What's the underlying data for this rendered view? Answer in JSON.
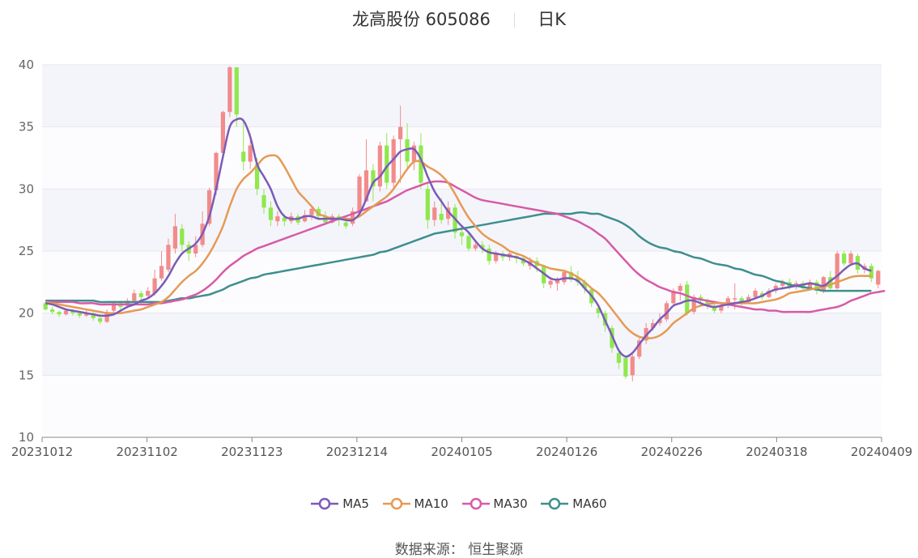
{
  "title": "龙高股份 605086",
  "period": "日K",
  "source_label": "数据来源：",
  "source_value": "恒生聚源",
  "colors": {
    "up": "#f28b8c",
    "down": "#8fe84e",
    "band": "#f4f5fb",
    "grid": "#e6e6ee",
    "axis": "#888888",
    "MA5": "#7b5bb7",
    "MA10": "#e69a55",
    "MA30": "#d85aa6",
    "MA60": "#3e8f8f"
  },
  "chart_data": {
    "type": "candlestick",
    "x_ticks": [
      "20231012",
      "20231102",
      "20231123",
      "20231214",
      "20240105",
      "20240126",
      "20240226",
      "20240318",
      "20240409"
    ],
    "ylim": [
      10,
      40
    ],
    "y_ticks": [
      10,
      15,
      20,
      25,
      30,
      35,
      40
    ],
    "grid": true,
    "legend_position": "bottom",
    "legend": [
      "MA5",
      "MA10",
      "MA30",
      "MA60"
    ],
    "candles": [
      [
        20.8,
        20.3,
        20.9,
        20.2
      ],
      [
        20.3,
        20.1,
        20.5,
        19.9
      ],
      [
        20.1,
        19.9,
        20.2,
        19.7
      ],
      [
        19.9,
        20.2,
        20.4,
        19.8
      ],
      [
        20.2,
        20.0,
        20.3,
        19.8
      ],
      [
        20.0,
        19.8,
        20.1,
        19.6
      ],
      [
        19.8,
        20.0,
        20.2,
        19.7
      ],
      [
        20.0,
        19.6,
        20.1,
        19.4
      ],
      [
        19.6,
        19.3,
        19.8,
        19.1
      ],
      [
        19.3,
        20.1,
        20.3,
        19.2
      ],
      [
        20.2,
        20.8,
        21.0,
        20.0
      ],
      [
        20.8,
        20.5,
        21.0,
        20.3
      ],
      [
        20.6,
        21.0,
        21.2,
        20.4
      ],
      [
        21.0,
        21.6,
        21.9,
        20.9
      ],
      [
        21.6,
        21.3,
        21.8,
        21.0
      ],
      [
        21.4,
        21.8,
        22.1,
        21.2
      ],
      [
        21.6,
        22.8,
        23.5,
        21.4
      ],
      [
        22.8,
        23.8,
        25.0,
        22.6
      ],
      [
        23.5,
        25.5,
        26.0,
        23.3
      ],
      [
        25.2,
        27.0,
        28.0,
        24.8
      ],
      [
        26.8,
        25.5,
        27.2,
        25.0
      ],
      [
        25.5,
        24.8,
        25.8,
        24.2
      ],
      [
        24.8,
        25.5,
        26.2,
        24.5
      ],
      [
        25.5,
        27.2,
        28.2,
        25.3
      ],
      [
        27.2,
        29.9,
        30.1,
        27.0
      ],
      [
        29.9,
        32.9,
        33.0,
        29.5
      ],
      [
        32.9,
        36.2,
        36.3,
        32.5
      ],
      [
        36.2,
        39.8,
        39.9,
        35.8
      ],
      [
        39.8,
        36.0,
        37.8,
        35.0
      ],
      [
        33.0,
        32.2,
        35.5,
        31.5
      ],
      [
        32.2,
        33.5,
        34.5,
        31.6
      ],
      [
        32.0,
        30.0,
        32.5,
        29.5
      ],
      [
        29.5,
        28.5,
        30.0,
        28.0
      ],
      [
        28.5,
        27.5,
        29.0,
        27.0
      ],
      [
        27.4,
        27.8,
        28.2,
        27.0
      ],
      [
        27.7,
        27.4,
        28.0,
        27.0
      ],
      [
        27.4,
        27.8,
        28.1,
        27.2
      ],
      [
        27.8,
        27.3,
        28.0,
        27.1
      ],
      [
        27.4,
        27.9,
        28.3,
        27.3
      ],
      [
        27.9,
        28.4,
        28.7,
        27.5
      ],
      [
        28.4,
        27.8,
        28.6,
        27.5
      ],
      [
        27.8,
        27.3,
        28.2,
        27.1
      ],
      [
        27.3,
        27.8,
        28.0,
        27.2
      ],
      [
        27.8,
        27.5,
        28.0,
        27.0
      ],
      [
        27.3,
        27.0,
        27.8,
        26.8
      ],
      [
        27.2,
        28.2,
        28.5,
        27.0
      ],
      [
        28.2,
        31.0,
        31.2,
        28.0
      ],
      [
        29.0,
        31.5,
        34.0,
        29.0
      ],
      [
        31.5,
        30.2,
        32.0,
        29.0
      ],
      [
        30.2,
        33.5,
        33.8,
        29.8
      ],
      [
        33.5,
        30.5,
        34.5,
        30.0
      ],
      [
        30.5,
        34.0,
        34.3,
        30.0
      ],
      [
        34.0,
        35.0,
        36.7,
        30.5
      ],
      [
        34.0,
        32.2,
        35.3,
        31.5
      ],
      [
        32.2,
        33.5,
        33.8,
        31.5
      ],
      [
        33.5,
        30.5,
        34.5,
        30.0
      ],
      [
        30.0,
        27.5,
        30.5,
        26.8
      ],
      [
        27.5,
        28.5,
        29.0,
        27.0
      ],
      [
        28.0,
        27.5,
        29.3,
        27.2
      ],
      [
        27.6,
        28.5,
        29.0,
        27.1
      ],
      [
        28.5,
        26.5,
        28.8,
        26.0
      ],
      [
        26.5,
        26.2,
        26.8,
        25.5
      ],
      [
        26.2,
        25.2,
        26.5,
        25.0
      ],
      [
        25.2,
        25.5,
        25.8,
        25.0
      ],
      [
        25.5,
        25.2,
        25.8,
        24.8
      ],
      [
        25.2,
        24.2,
        25.5,
        23.9
      ],
      [
        24.2,
        24.8,
        25.0,
        24.0
      ],
      [
        24.8,
        24.5,
        25.0,
        24.2
      ],
      [
        24.5,
        24.8,
        25.0,
        24.2
      ],
      [
        24.6,
        24.4,
        24.9,
        24.0
      ],
      [
        24.4,
        24.0,
        24.6,
        23.8
      ],
      [
        23.8,
        24.2,
        24.5,
        23.5
      ],
      [
        24.2,
        23.8,
        24.5,
        23.3
      ],
      [
        23.8,
        22.4,
        23.9,
        22.0
      ],
      [
        22.3,
        22.6,
        22.9,
        22.0
      ],
      [
        22.4,
        22.7,
        22.9,
        21.8
      ],
      [
        22.5,
        23.3,
        23.5,
        22.3
      ],
      [
        23.3,
        22.7,
        23.8,
        22.5
      ],
      [
        22.9,
        22.5,
        23.4,
        22.2
      ],
      [
        22.5,
        22.0,
        22.7,
        21.6
      ],
      [
        21.9,
        20.8,
        22.0,
        20.5
      ],
      [
        20.4,
        20.0,
        20.6,
        19.6
      ],
      [
        20.0,
        19.0,
        20.2,
        18.5
      ],
      [
        18.8,
        17.2,
        19.0,
        16.8
      ],
      [
        16.8,
        16.0,
        17.0,
        15.5
      ],
      [
        16.4,
        14.9,
        16.6,
        14.7
      ],
      [
        15.0,
        16.5,
        16.8,
        14.5
      ],
      [
        16.5,
        17.8,
        18.0,
        16.3
      ],
      [
        17.8,
        18.8,
        19.2,
        17.5
      ],
      [
        18.8,
        19.2,
        19.5,
        18.6
      ],
      [
        19.2,
        19.5,
        20.0,
        19.0
      ],
      [
        19.5,
        20.8,
        21.0,
        19.3
      ],
      [
        20.8,
        21.8,
        22.0,
        20.5
      ],
      [
        21.8,
        22.2,
        22.4,
        21.0
      ],
      [
        22.3,
        20.0,
        22.6,
        19.8
      ],
      [
        20.1,
        21.3,
        21.5,
        19.9
      ],
      [
        21.3,
        21.0,
        21.5,
        20.6
      ],
      [
        21.0,
        20.6,
        21.2,
        20.3
      ],
      [
        20.6,
        20.2,
        20.8,
        20.0
      ],
      [
        20.2,
        20.6,
        20.8,
        20.0
      ],
      [
        20.6,
        21.2,
        21.4,
        20.4
      ],
      [
        21.2,
        21.2,
        22.4,
        20.3
      ],
      [
        21.2,
        20.9,
        21.4,
        20.6
      ],
      [
        20.9,
        21.3,
        21.5,
        20.8
      ],
      [
        21.3,
        21.8,
        22.0,
        21.1
      ],
      [
        21.6,
        21.3,
        21.8,
        21.1
      ],
      [
        21.3,
        21.8,
        22.0,
        21.2
      ],
      [
        21.8,
        22.2,
        22.4,
        21.6
      ],
      [
        22.2,
        22.5,
        22.7,
        22.0
      ],
      [
        22.5,
        22.1,
        22.8,
        21.9
      ],
      [
        22.1,
        22.4,
        22.6,
        21.9
      ],
      [
        22.4,
        22.0,
        22.6,
        21.8
      ],
      [
        22.0,
        22.5,
        22.7,
        21.8
      ],
      [
        22.5,
        21.8,
        22.7,
        21.5
      ],
      [
        21.8,
        22.9,
        23.0,
        21.6
      ],
      [
        22.9,
        22.0,
        23.4,
        21.8
      ],
      [
        22.0,
        24.8,
        25.0,
        21.9
      ],
      [
        24.8,
        24.0,
        25.0,
        23.8
      ],
      [
        24.0,
        24.8,
        25.0,
        23.9
      ],
      [
        24.6,
        23.5,
        24.8,
        23.2
      ],
      [
        23.5,
        23.8,
        24.0,
        23.2
      ],
      [
        23.8,
        22.8,
        24.0,
        22.5
      ],
      [
        22.3,
        23.4,
        23.5,
        22.0
      ]
    ],
    "series": [
      {
        "name": "MA5",
        "values": [
          20.8,
          20.7,
          20.5,
          20.3,
          20.2,
          20.1,
          20.0,
          19.9,
          19.8,
          19.8,
          19.9,
          20.2,
          20.5,
          20.7,
          21.0,
          21.2,
          21.6,
          22.2,
          23.0,
          24.0,
          24.8,
          25.2,
          25.6,
          26.4,
          27.8,
          30.0,
          32.6,
          35.0,
          35.6,
          35.5,
          34.2,
          32.0,
          31.0,
          30.0,
          28.6,
          27.8,
          27.6,
          27.6,
          27.8,
          27.8,
          27.6,
          27.6,
          27.6,
          27.6,
          27.5,
          27.5,
          28.0,
          29.2,
          30.5,
          31.0,
          31.8,
          32.4,
          33.0,
          33.2,
          33.2,
          32.4,
          31.0,
          29.8,
          29.0,
          28.2,
          27.6,
          27.0,
          26.5,
          25.8,
          25.2,
          24.9,
          24.8,
          24.7,
          24.6,
          24.5,
          24.3,
          24.0,
          23.6,
          23.2,
          22.8,
          22.7,
          22.8,
          22.8,
          22.6,
          22.0,
          21.4,
          20.6,
          19.4,
          18.2,
          17.0,
          16.5,
          16.8,
          17.5,
          18.2,
          18.8,
          19.5,
          20.0,
          20.6,
          20.8,
          21.0,
          21.0,
          20.8,
          20.6,
          20.5,
          20.6,
          20.7,
          20.8,
          20.9,
          21.0,
          21.2,
          21.4,
          21.7,
          21.9,
          22.0,
          22.1,
          22.2,
          22.3,
          22.4,
          22.3,
          22.2,
          22.6,
          23.0,
          23.5,
          23.9,
          24.0,
          23.6,
          23.4
        ]
      },
      {
        "name": "MA10",
        "values": [
          20.9,
          20.8,
          20.7,
          20.6,
          20.5,
          20.4,
          20.3,
          20.2,
          20.1,
          20.0,
          20.0,
          20.0,
          20.1,
          20.2,
          20.3,
          20.5,
          20.7,
          20.9,
          21.3,
          21.9,
          22.5,
          23.0,
          23.4,
          24.0,
          24.8,
          25.8,
          27.0,
          28.6,
          30.0,
          30.8,
          31.3,
          31.9,
          32.5,
          32.7,
          32.6,
          31.8,
          30.8,
          29.8,
          29.2,
          28.6,
          28.0,
          27.8,
          27.6,
          27.6,
          27.6,
          27.6,
          27.8,
          28.2,
          28.6,
          29.0,
          29.4,
          30.0,
          30.8,
          31.6,
          32.2,
          32.2,
          31.8,
          31.5,
          31.1,
          30.5,
          29.6,
          28.6,
          27.7,
          27.0,
          26.4,
          26.0,
          25.7,
          25.4,
          25.0,
          24.8,
          24.6,
          24.3,
          24.0,
          23.8,
          23.6,
          23.5,
          23.4,
          23.2,
          22.9,
          22.5,
          22.0,
          21.6,
          21.0,
          20.3,
          19.6,
          18.9,
          18.4,
          18.1,
          18.0,
          18.0,
          18.2,
          18.6,
          19.2,
          19.6,
          20.0,
          20.4,
          20.6,
          20.7,
          20.8,
          20.8,
          20.8,
          20.8,
          20.8,
          20.8,
          20.8,
          20.9,
          21.0,
          21.1,
          21.3,
          21.6,
          21.7,
          21.8,
          21.9,
          22.0,
          22.1,
          22.3,
          22.5,
          22.7,
          22.9,
          23.0,
          23.0,
          23.0
        ]
      },
      {
        "name": "MA30",
        "values": [
          20.9,
          20.9,
          20.9,
          20.9,
          20.9,
          20.8,
          20.8,
          20.8,
          20.7,
          20.7,
          20.7,
          20.7,
          20.7,
          20.7,
          20.7,
          20.7,
          20.8,
          20.8,
          20.9,
          21.0,
          21.1,
          21.3,
          21.5,
          21.8,
          22.2,
          22.7,
          23.3,
          23.8,
          24.2,
          24.6,
          24.9,
          25.2,
          25.4,
          25.6,
          25.8,
          26.0,
          26.2,
          26.4,
          26.6,
          26.8,
          27.0,
          27.2,
          27.4,
          27.6,
          27.8,
          28.0,
          28.2,
          28.4,
          28.6,
          28.8,
          29.0,
          29.3,
          29.6,
          29.9,
          30.1,
          30.3,
          30.5,
          30.6,
          30.6,
          30.5,
          30.2,
          29.9,
          29.6,
          29.3,
          29.1,
          29.0,
          28.9,
          28.8,
          28.7,
          28.6,
          28.5,
          28.4,
          28.3,
          28.2,
          28.1,
          28.0,
          27.8,
          27.6,
          27.4,
          27.1,
          26.8,
          26.4,
          26.0,
          25.4,
          24.8,
          24.2,
          23.6,
          23.1,
          22.7,
          22.4,
          22.1,
          21.9,
          21.7,
          21.6,
          21.4,
          21.2,
          21.1,
          21.0,
          20.9,
          20.8,
          20.7,
          20.6,
          20.5,
          20.4,
          20.3,
          20.3,
          20.2,
          20.2,
          20.1,
          20.1,
          20.1,
          20.1,
          20.1,
          20.2,
          20.3,
          20.4,
          20.5,
          20.7,
          21.0,
          21.2,
          21.4,
          21.6,
          21.7,
          21.8
        ]
      },
      {
        "name": "MA60",
        "values": [
          21.0,
          21.0,
          21.0,
          21.0,
          21.0,
          21.0,
          21.0,
          21.0,
          20.9,
          20.9,
          20.9,
          20.9,
          20.9,
          20.9,
          20.9,
          20.9,
          20.9,
          20.9,
          21.0,
          21.1,
          21.2,
          21.2,
          21.3,
          21.4,
          21.5,
          21.7,
          21.9,
          22.2,
          22.4,
          22.6,
          22.8,
          22.9,
          23.1,
          23.2,
          23.3,
          23.4,
          23.5,
          23.6,
          23.7,
          23.8,
          23.9,
          24.0,
          24.1,
          24.2,
          24.3,
          24.4,
          24.5,
          24.6,
          24.7,
          24.9,
          25.0,
          25.2,
          25.4,
          25.6,
          25.8,
          26.0,
          26.2,
          26.4,
          26.5,
          26.6,
          26.7,
          26.8,
          26.9,
          27.0,
          27.1,
          27.2,
          27.3,
          27.4,
          27.5,
          27.6,
          27.7,
          27.8,
          27.9,
          28.0,
          28.0,
          28.0,
          28.0,
          28.0,
          28.1,
          28.1,
          28.0,
          28.0,
          27.8,
          27.6,
          27.4,
          27.1,
          26.7,
          26.2,
          25.8,
          25.5,
          25.3,
          25.2,
          25.0,
          24.9,
          24.7,
          24.5,
          24.4,
          24.2,
          24.0,
          23.9,
          23.8,
          23.6,
          23.5,
          23.3,
          23.1,
          23.0,
          22.8,
          22.6,
          22.5,
          22.3,
          22.2,
          22.1,
          22.0,
          21.9,
          21.8,
          21.8,
          21.8,
          21.8,
          21.8,
          21.8,
          21.8,
          21.8
        ]
      }
    ]
  }
}
